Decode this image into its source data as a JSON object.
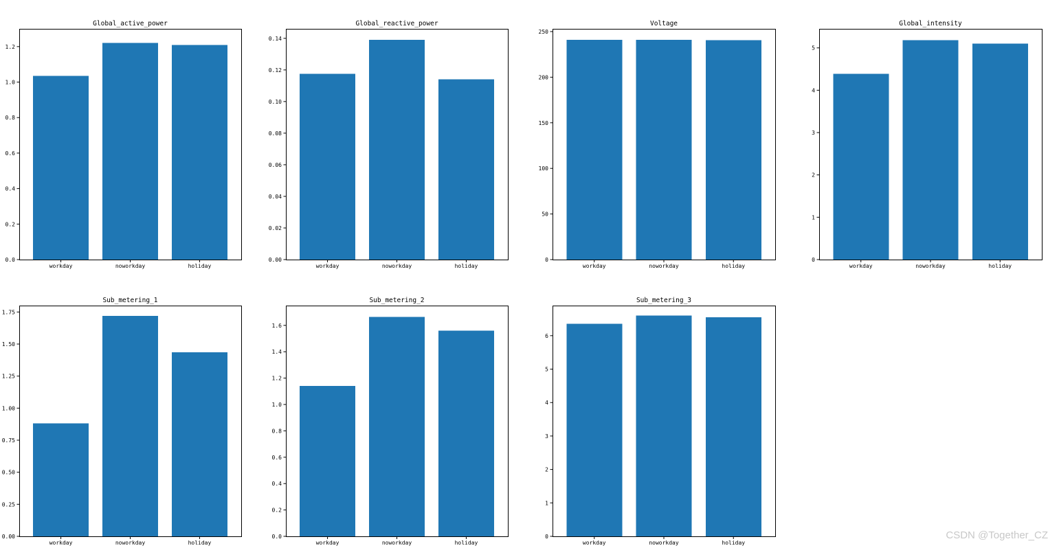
{
  "watermark": "CSDN @Together_CZ",
  "bar_color": "#1f77b4",
  "chart_data": [
    {
      "type": "bar",
      "title": "Global_active_power",
      "categories": [
        "workday",
        "noworkday",
        "holiday"
      ],
      "values": [
        1.035,
        1.22,
        1.21
      ],
      "ylim": [
        0,
        1.3
      ],
      "yticks": [
        0.0,
        0.2,
        0.4,
        0.6,
        0.8,
        1.0,
        1.2
      ],
      "ytick_labels": [
        "0.0",
        "0.2",
        "0.4",
        "0.6",
        "0.8",
        "1.0",
        "1.2"
      ],
      "xlabel": "",
      "ylabel": "",
      "grid": false
    },
    {
      "type": "bar",
      "title": "Global_reactive_power",
      "categories": [
        "workday",
        "noworkday",
        "holiday"
      ],
      "values": [
        0.1175,
        0.139,
        0.114
      ],
      "ylim": [
        0,
        0.146
      ],
      "yticks": [
        0.0,
        0.02,
        0.04,
        0.06,
        0.08,
        0.1,
        0.12,
        0.14
      ],
      "ytick_labels": [
        "0.00",
        "0.02",
        "0.04",
        "0.06",
        "0.08",
        "0.10",
        "0.12",
        "0.14"
      ],
      "xlabel": "",
      "ylabel": "",
      "grid": false
    },
    {
      "type": "bar",
      "title": "Voltage",
      "categories": [
        "workday",
        "noworkday",
        "holiday"
      ],
      "values": [
        241.0,
        241.0,
        240.5
      ],
      "ylim": [
        0,
        253
      ],
      "yticks": [
        0,
        50,
        100,
        150,
        200,
        250
      ],
      "ytick_labels": [
        "0",
        "50",
        "100",
        "150",
        "200",
        "250"
      ],
      "xlabel": "",
      "ylabel": "",
      "grid": false
    },
    {
      "type": "bar",
      "title": "Global_intensity",
      "categories": [
        "workday",
        "noworkday",
        "holiday"
      ],
      "values": [
        4.39,
        5.18,
        5.1
      ],
      "ylim": [
        0,
        5.45
      ],
      "yticks": [
        0,
        1,
        2,
        3,
        4,
        5
      ],
      "ytick_labels": [
        "0",
        "1",
        "2",
        "3",
        "4",
        "5"
      ],
      "xlabel": "",
      "ylabel": "",
      "grid": false
    },
    {
      "type": "bar",
      "title": "Sub_metering_1",
      "categories": [
        "workday",
        "noworkday",
        "holiday"
      ],
      "values": [
        0.88,
        1.72,
        1.435
      ],
      "ylim": [
        0,
        1.8
      ],
      "yticks": [
        0.0,
        0.25,
        0.5,
        0.75,
        1.0,
        1.25,
        1.5,
        1.75
      ],
      "ytick_labels": [
        "0.00",
        "0.25",
        "0.50",
        "0.75",
        "1.00",
        "1.25",
        "1.50",
        "1.75"
      ],
      "xlabel": "",
      "ylabel": "",
      "grid": false
    },
    {
      "type": "bar",
      "title": "Sub_metering_2",
      "categories": [
        "workday",
        "noworkday",
        "holiday"
      ],
      "values": [
        1.14,
        1.665,
        1.56
      ],
      "ylim": [
        0,
        1.75
      ],
      "yticks": [
        0.0,
        0.2,
        0.4,
        0.6,
        0.8,
        1.0,
        1.2,
        1.4,
        1.6
      ],
      "ytick_labels": [
        "0.0",
        "0.2",
        "0.4",
        "0.6",
        "0.8",
        "1.0",
        "1.2",
        "1.4",
        "1.6"
      ],
      "xlabel": "",
      "ylabel": "",
      "grid": false
    },
    {
      "type": "bar",
      "title": "Sub_metering_3",
      "categories": [
        "workday",
        "noworkday",
        "holiday"
      ],
      "values": [
        6.36,
        6.6,
        6.55
      ],
      "ylim": [
        0,
        6.9
      ],
      "yticks": [
        0,
        1,
        2,
        3,
        4,
        5,
        6
      ],
      "ytick_labels": [
        "0",
        "1",
        "2",
        "3",
        "4",
        "5",
        "6"
      ],
      "xlabel": "",
      "ylabel": "",
      "grid": false
    }
  ]
}
